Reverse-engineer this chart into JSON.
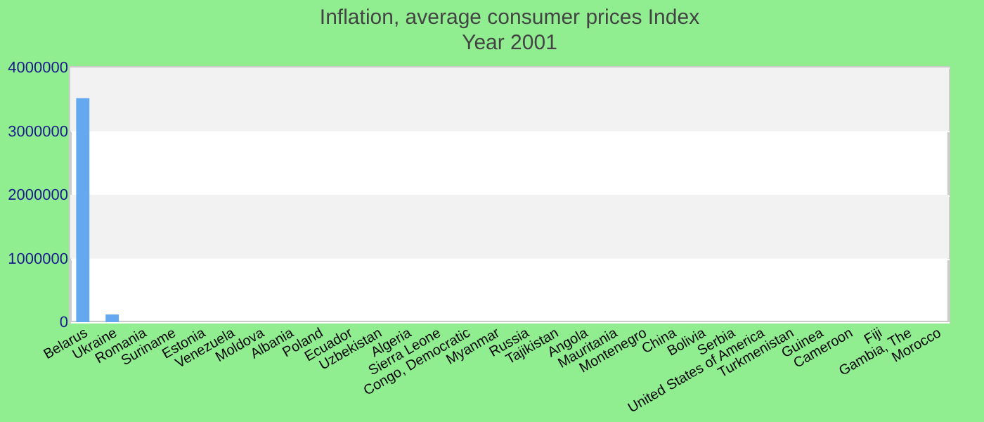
{
  "chart_data": {
    "type": "bar",
    "title": "Inflation, average consumer prices  Index",
    "subtitle": "Year 2001",
    "categories": [
      "Belarus",
      "Ukraine",
      "Romania",
      "Suriname",
      "Estonia",
      "Venezuela",
      "Moldova",
      "Albania",
      "Poland",
      "Ecuador",
      "Uzbekistan",
      "Algeria",
      "Sierra Leone",
      "Congo, Democratic",
      "Myanmar",
      "Russia",
      "Tajikistan",
      "Angola",
      "Mauritania",
      "Montenegro",
      "China",
      "Bolivia",
      "Serbia",
      "United States of America",
      "Turkmenistan",
      "Guinea",
      "Cameroon",
      "Fiji",
      "Gambia, The",
      "Morocco"
    ],
    "values": [
      3520000,
      120000,
      0,
      0,
      0,
      0,
      0,
      0,
      0,
      0,
      0,
      0,
      0,
      0,
      0,
      0,
      0,
      0,
      0,
      0,
      0,
      0,
      0,
      0,
      0,
      0,
      0,
      0,
      0,
      0
    ],
    "color": "#64a8f0",
    "ylim": [
      0,
      4000000
    ],
    "yticks": [
      0,
      1000000,
      2000000,
      3000000,
      4000000
    ],
    "grid": "y"
  }
}
